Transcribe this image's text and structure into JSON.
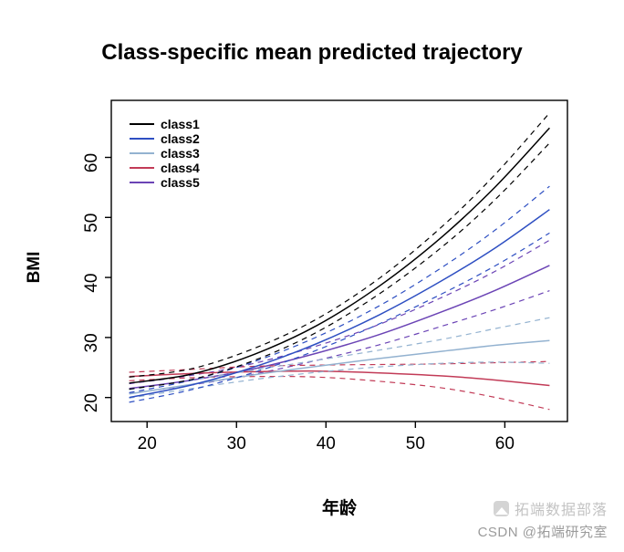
{
  "chart_data": {
    "type": "line",
    "title": "Class-specific mean predicted trajectory",
    "xlabel": "年龄",
    "ylabel": "BMI",
    "xlim": [
      16,
      67
    ],
    "ylim": [
      16,
      69.5
    ],
    "xticks": [
      20,
      30,
      40,
      50,
      60
    ],
    "yticks": [
      20,
      30,
      40,
      50,
      60
    ],
    "grid": false,
    "legend_position": "top-left",
    "x": [
      18,
      25,
      32,
      39,
      46,
      53,
      59,
      65
    ],
    "series": [
      {
        "name": "class1",
        "color": "#000000",
        "mean": [
          22.4,
          23.9,
          27.2,
          32.0,
          38.6,
          46.8,
          55.2,
          64.9
        ],
        "upper": [
          23.4,
          24.8,
          28.2,
          33.1,
          39.9,
          48.5,
          57.3,
          67.4
        ],
        "lower": [
          21.4,
          23.0,
          26.2,
          30.9,
          37.3,
          45.1,
          53.1,
          62.4
        ]
      },
      {
        "name": "class2",
        "color": "#2e4fc2",
        "mean": [
          20.0,
          22.1,
          25.1,
          29.0,
          33.8,
          39.5,
          45.0,
          51.3
        ],
        "upper": [
          20.8,
          22.9,
          26.0,
          30.1,
          35.3,
          41.7,
          48.0,
          55.2
        ],
        "lower": [
          19.2,
          21.3,
          24.2,
          27.9,
          32.3,
          37.3,
          42.0,
          47.4
        ]
      },
      {
        "name": "class3",
        "color": "#93b2d0",
        "mean": [
          20.6,
          22.2,
          23.8,
          25.2,
          26.5,
          27.7,
          28.7,
          29.5
        ],
        "upper": [
          21.3,
          22.9,
          24.6,
          26.2,
          27.9,
          29.7,
          31.5,
          33.3
        ],
        "lower": [
          19.9,
          21.5,
          23.0,
          24.2,
          25.1,
          25.7,
          25.9,
          25.7
        ]
      },
      {
        "name": "class4",
        "color": "#c23b57",
        "mean": [
          23.5,
          24.0,
          24.3,
          24.4,
          24.1,
          23.6,
          22.9,
          22.0
        ],
        "upper": [
          24.2,
          24.7,
          25.2,
          25.4,
          25.5,
          25.6,
          25.8,
          26.0
        ],
        "lower": [
          22.8,
          23.3,
          23.5,
          23.4,
          22.7,
          21.6,
          20.0,
          18.0
        ]
      },
      {
        "name": "class5",
        "color": "#6b44b5",
        "mean": [
          21.5,
          22.9,
          24.8,
          27.4,
          30.5,
          34.3,
          37.9,
          42.0
        ],
        "upper": [
          22.3,
          23.7,
          25.7,
          28.6,
          32.2,
          36.7,
          41.1,
          46.2
        ],
        "lower": [
          20.7,
          22.1,
          23.9,
          26.2,
          28.8,
          31.9,
          34.7,
          37.8
        ]
      }
    ]
  },
  "watermark": {
    "line1": "拓端数据部落",
    "line2": "CSDN @拓端研究室"
  }
}
